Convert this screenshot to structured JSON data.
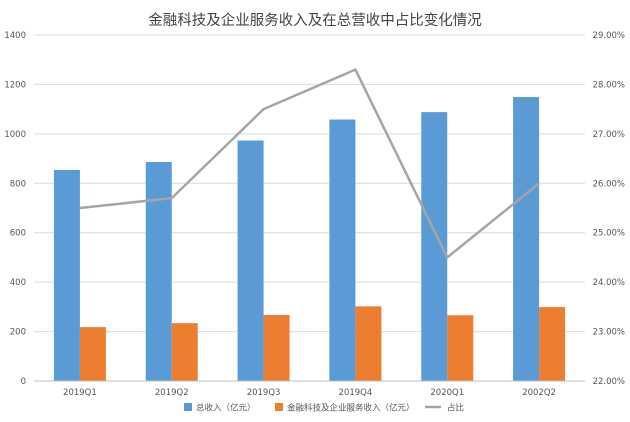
{
  "chart_data": {
    "type": "bar",
    "title": "金融科技及企业服务收入及在总营收中占比变化情况",
    "categories": [
      "2019Q1",
      "2019Q2",
      "2019Q3",
      "2019Q4",
      "2020Q1",
      "2002Q2"
    ],
    "series": [
      {
        "name": "总收入（亿元）",
        "type": "bar",
        "axis": "left",
        "color": "#5b9bd5",
        "values": [
          854,
          886,
          973,
          1058,
          1088,
          1149
        ]
      },
      {
        "name": "金融科技及企业服务收入（亿元）",
        "type": "bar",
        "axis": "left",
        "color": "#ed7d31",
        "values": [
          218,
          234,
          267,
          302,
          266,
          299
        ]
      },
      {
        "name": "占比",
        "type": "line",
        "axis": "right",
        "color": "#a5a5a5",
        "values": [
          25.5,
          25.7,
          27.5,
          28.3,
          24.5,
          26.0
        ]
      }
    ],
    "y_left": {
      "min": 0,
      "max": 1400,
      "step": 200,
      "tick_labels": [
        "0",
        "200",
        "400",
        "600",
        "800",
        "1000",
        "1200",
        "1400"
      ]
    },
    "y_right": {
      "min": 22,
      "max": 29,
      "step": 1,
      "tick_labels": [
        "22.00%",
        "23.00%",
        "24.00%",
        "25.00%",
        "26.00%",
        "27.00%",
        "28.00%",
        "29.00%"
      ]
    },
    "grid": true,
    "legend_position": "bottom"
  }
}
